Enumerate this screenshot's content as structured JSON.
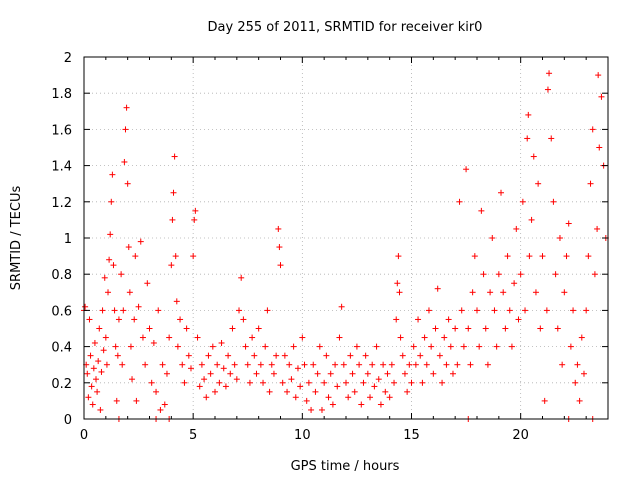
{
  "chart_data": {
    "type": "scatter",
    "title": "Day 255 of 2011, SRMTID for receiver kir0",
    "xlabel": "GPS time / hours",
    "ylabel": "SRMTID / TECUs",
    "xlim": [
      0,
      24
    ],
    "ylim": [
      0,
      2
    ],
    "grid": true,
    "x_ticks": [
      {
        "value": 0,
        "label": "0"
      },
      {
        "value": 5,
        "label": "5"
      },
      {
        "value": 10,
        "label": "10"
      },
      {
        "value": 15,
        "label": "15"
      },
      {
        "value": 20,
        "label": "20"
      }
    ],
    "y_ticks": [
      {
        "value": 0,
        "label": "0"
      },
      {
        "value": 0.2,
        "label": "0.2"
      },
      {
        "value": 0.4,
        "label": "0.4"
      },
      {
        "value": 0.6,
        "label": "0.6"
      },
      {
        "value": 0.8,
        "label": "0.8"
      },
      {
        "value": 1.0,
        "label": "1"
      },
      {
        "value": 1.2,
        "label": "1.2"
      },
      {
        "value": 1.4,
        "label": "1.4"
      },
      {
        "value": 1.6,
        "label": "1.6"
      },
      {
        "value": 1.8,
        "label": "1.8"
      },
      {
        "value": 2.0,
        "label": "2"
      }
    ],
    "series": [
      {
        "name": "SRMTID",
        "color": "#ff0000",
        "marker": "plus",
        "points": [
          [
            0.05,
            0.62
          ],
          [
            0.1,
            0.3
          ],
          [
            0.15,
            0.25
          ],
          [
            0.2,
            0.12
          ],
          [
            0.25,
            0.55
          ],
          [
            0.3,
            0.35
          ],
          [
            0.35,
            0.18
          ],
          [
            0.4,
            0.08
          ],
          [
            0.45,
            0.28
          ],
          [
            0.5,
            0.42
          ],
          [
            0.55,
            0.22
          ],
          [
            0.6,
            0.15
          ],
          [
            0.65,
            0.32
          ],
          [
            0.7,
            0.5
          ],
          [
            0.75,
            0.05
          ],
          [
            0.8,
            0.26
          ],
          [
            0.85,
            0.6
          ],
          [
            0.9,
            0.38
          ],
          [
            0.95,
            0.78
          ],
          [
            1.0,
            0.45
          ],
          [
            1.05,
            0.3
          ],
          [
            1.1,
            0.7
          ],
          [
            1.15,
            0.88
          ],
          [
            1.2,
            1.02
          ],
          [
            1.25,
            1.2
          ],
          [
            1.3,
            1.35
          ],
          [
            1.35,
            0.85
          ],
          [
            1.4,
            0.6
          ],
          [
            1.45,
            0.4
          ],
          [
            1.5,
            0.1
          ],
          [
            1.55,
            0.35
          ],
          [
            1.6,
            0.55
          ],
          [
            1.7,
            0.8
          ],
          [
            1.75,
            0.3
          ],
          [
            1.8,
            0.6
          ],
          [
            1.85,
            1.42
          ],
          [
            1.9,
            1.6
          ],
          [
            1.95,
            1.72
          ],
          [
            2.0,
            1.3
          ],
          [
            2.05,
            0.95
          ],
          [
            2.1,
            0.7
          ],
          [
            2.15,
            0.4
          ],
          [
            2.2,
            0.22
          ],
          [
            2.3,
            0.55
          ],
          [
            2.35,
            0.9
          ],
          [
            2.4,
            0.1
          ],
          [
            2.5,
            0.62
          ],
          [
            2.6,
            0.98
          ],
          [
            2.7,
            0.45
          ],
          [
            2.8,
            0.3
          ],
          [
            2.9,
            0.75
          ],
          [
            3.0,
            0.5
          ],
          [
            3.1,
            0.2
          ],
          [
            3.2,
            0.42
          ],
          [
            3.3,
            0.15
          ],
          [
            3.4,
            0.6
          ],
          [
            3.5,
            0.05
          ],
          [
            3.6,
            0.3
          ],
          [
            3.7,
            0.08
          ],
          [
            3.8,
            0.25
          ],
          [
            3.9,
            0.45
          ],
          [
            4.0,
            0.85
          ],
          [
            4.05,
            1.1
          ],
          [
            4.1,
            1.25
          ],
          [
            4.15,
            1.45
          ],
          [
            4.2,
            0.9
          ],
          [
            4.25,
            0.65
          ],
          [
            4.3,
            0.4
          ],
          [
            4.4,
            0.55
          ],
          [
            4.5,
            0.3
          ],
          [
            4.6,
            0.2
          ],
          [
            4.7,
            0.5
          ],
          [
            4.8,
            0.35
          ],
          [
            4.9,
            0.28
          ],
          [
            5.0,
            0.9
          ],
          [
            5.05,
            1.1
          ],
          [
            5.1,
            1.15
          ],
          [
            5.2,
            0.45
          ],
          [
            5.3,
            0.18
          ],
          [
            5.4,
            0.3
          ],
          [
            5.5,
            0.22
          ],
          [
            5.6,
            0.12
          ],
          [
            5.7,
            0.35
          ],
          [
            5.8,
            0.25
          ],
          [
            5.9,
            0.4
          ],
          [
            6.0,
            0.15
          ],
          [
            6.1,
            0.3
          ],
          [
            6.2,
            0.2
          ],
          [
            6.3,
            0.42
          ],
          [
            6.4,
            0.28
          ],
          [
            6.5,
            0.18
          ],
          [
            6.6,
            0.35
          ],
          [
            6.7,
            0.25
          ],
          [
            6.8,
            0.5
          ],
          [
            6.9,
            0.3
          ],
          [
            7.0,
            0.22
          ],
          [
            7.1,
            0.6
          ],
          [
            7.2,
            0.78
          ],
          [
            7.3,
            0.55
          ],
          [
            7.4,
            0.4
          ],
          [
            7.5,
            0.3
          ],
          [
            7.6,
            0.2
          ],
          [
            7.7,
            0.45
          ],
          [
            7.8,
            0.35
          ],
          [
            7.9,
            0.25
          ],
          [
            8.0,
            0.5
          ],
          [
            8.1,
            0.3
          ],
          [
            8.2,
            0.2
          ],
          [
            8.3,
            0.4
          ],
          [
            8.4,
            0.6
          ],
          [
            8.5,
            0.15
          ],
          [
            8.6,
            0.3
          ],
          [
            8.7,
            0.25
          ],
          [
            8.8,
            0.35
          ],
          [
            8.9,
            1.05
          ],
          [
            8.95,
            0.95
          ],
          [
            9.0,
            0.85
          ],
          [
            9.1,
            0.2
          ],
          [
            9.2,
            0.35
          ],
          [
            9.3,
            0.15
          ],
          [
            9.4,
            0.3
          ],
          [
            9.5,
            0.22
          ],
          [
            9.6,
            0.4
          ],
          [
            9.7,
            0.12
          ],
          [
            9.8,
            0.28
          ],
          [
            9.9,
            0.18
          ],
          [
            10.0,
            0.45
          ],
          [
            10.1,
            0.3
          ],
          [
            10.2,
            0.1
          ],
          [
            10.3,
            0.2
          ],
          [
            10.4,
            0.05
          ],
          [
            10.5,
            0.3
          ],
          [
            10.6,
            0.15
          ],
          [
            10.7,
            0.25
          ],
          [
            10.8,
            0.4
          ],
          [
            10.9,
            0.05
          ],
          [
            11.0,
            0.2
          ],
          [
            11.1,
            0.35
          ],
          [
            11.2,
            0.12
          ],
          [
            11.3,
            0.25
          ],
          [
            11.4,
            0.08
          ],
          [
            11.5,
            0.3
          ],
          [
            11.6,
            0.18
          ],
          [
            11.7,
            0.45
          ],
          [
            11.8,
            0.62
          ],
          [
            11.9,
            0.3
          ],
          [
            12.0,
            0.2
          ],
          [
            12.1,
            0.12
          ],
          [
            12.2,
            0.35
          ],
          [
            12.3,
            0.25
          ],
          [
            12.4,
            0.15
          ],
          [
            12.5,
            0.4
          ],
          [
            12.6,
            0.3
          ],
          [
            12.7,
            0.08
          ],
          [
            12.8,
            0.2
          ],
          [
            12.9,
            0.35
          ],
          [
            13.0,
            0.25
          ],
          [
            13.1,
            0.12
          ],
          [
            13.2,
            0.3
          ],
          [
            13.3,
            0.18
          ],
          [
            13.4,
            0.4
          ],
          [
            13.5,
            0.22
          ],
          [
            13.6,
            0.08
          ],
          [
            13.7,
            0.3
          ],
          [
            13.8,
            0.15
          ],
          [
            13.9,
            0.25
          ],
          [
            14.0,
            0.12
          ],
          [
            14.1,
            0.3
          ],
          [
            14.2,
            0.2
          ],
          [
            14.3,
            0.55
          ],
          [
            14.35,
            0.75
          ],
          [
            14.4,
            0.9
          ],
          [
            14.45,
            0.7
          ],
          [
            14.5,
            0.45
          ],
          [
            14.6,
            0.35
          ],
          [
            14.7,
            0.25
          ],
          [
            14.8,
            0.15
          ],
          [
            14.9,
            0.3
          ],
          [
            15.0,
            0.2
          ],
          [
            15.1,
            0.4
          ],
          [
            15.2,
            0.3
          ],
          [
            15.3,
            0.55
          ],
          [
            15.4,
            0.35
          ],
          [
            15.5,
            0.2
          ],
          [
            15.6,
            0.45
          ],
          [
            15.7,
            0.3
          ],
          [
            15.8,
            0.6
          ],
          [
            15.9,
            0.4
          ],
          [
            16.0,
            0.25
          ],
          [
            16.1,
            0.5
          ],
          [
            16.2,
            0.72
          ],
          [
            16.3,
            0.35
          ],
          [
            16.4,
            0.2
          ],
          [
            16.5,
            0.45
          ],
          [
            16.6,
            0.3
          ],
          [
            16.7,
            0.55
          ],
          [
            16.8,
            0.4
          ],
          [
            16.9,
            0.25
          ],
          [
            17.0,
            0.5
          ],
          [
            17.1,
            0.3
          ],
          [
            17.2,
            1.2
          ],
          [
            17.3,
            0.6
          ],
          [
            17.4,
            0.4
          ],
          [
            17.5,
            1.38
          ],
          [
            17.6,
            0.5
          ],
          [
            17.7,
            0.3
          ],
          [
            17.8,
            0.7
          ],
          [
            17.9,
            0.9
          ],
          [
            18.0,
            0.6
          ],
          [
            18.1,
            0.4
          ],
          [
            18.2,
            1.15
          ],
          [
            18.3,
            0.8
          ],
          [
            18.4,
            0.5
          ],
          [
            18.5,
            0.3
          ],
          [
            18.6,
            0.7
          ],
          [
            18.7,
            1.0
          ],
          [
            18.8,
            0.6
          ],
          [
            18.9,
            0.4
          ],
          [
            19.0,
            0.8
          ],
          [
            19.1,
            1.25
          ],
          [
            19.2,
            0.7
          ],
          [
            19.3,
            0.5
          ],
          [
            19.4,
            0.9
          ],
          [
            19.5,
            0.6
          ],
          [
            19.6,
            0.4
          ],
          [
            19.7,
            0.75
          ],
          [
            19.8,
            1.05
          ],
          [
            19.9,
            0.55
          ],
          [
            20.0,
            0.8
          ],
          [
            20.1,
            1.2
          ],
          [
            20.2,
            0.6
          ],
          [
            20.3,
            1.55
          ],
          [
            20.35,
            1.68
          ],
          [
            20.4,
            0.9
          ],
          [
            20.5,
            1.1
          ],
          [
            20.6,
            1.45
          ],
          [
            20.7,
            0.7
          ],
          [
            20.8,
            1.3
          ],
          [
            20.9,
            0.5
          ],
          [
            21.0,
            0.9
          ],
          [
            21.1,
            0.1
          ],
          [
            21.2,
            0.6
          ],
          [
            21.25,
            1.82
          ],
          [
            21.3,
            1.91
          ],
          [
            21.4,
            1.55
          ],
          [
            21.5,
            1.2
          ],
          [
            21.6,
            0.8
          ],
          [
            21.7,
            0.5
          ],
          [
            21.8,
            1.0
          ],
          [
            21.9,
            0.3
          ],
          [
            22.0,
            0.7
          ],
          [
            22.1,
            0.9
          ],
          [
            22.2,
            1.08
          ],
          [
            22.3,
            0.4
          ],
          [
            22.4,
            0.6
          ],
          [
            22.5,
            0.2
          ],
          [
            22.6,
            0.3
          ],
          [
            22.7,
            0.1
          ],
          [
            22.8,
            0.45
          ],
          [
            22.9,
            0.25
          ],
          [
            23.0,
            0.6
          ],
          [
            23.1,
            0.9
          ],
          [
            23.2,
            1.3
          ],
          [
            23.3,
            1.6
          ],
          [
            23.4,
            0.8
          ],
          [
            23.5,
            1.05
          ],
          [
            23.55,
            1.9
          ],
          [
            23.6,
            1.5
          ],
          [
            23.7,
            1.78
          ],
          [
            23.8,
            1.4
          ],
          [
            1.6,
            0.0
          ],
          [
            3.3,
            0.0
          ],
          [
            3.9,
            0.0
          ],
          [
            17.6,
            0.0
          ],
          [
            22.2,
            0.0
          ],
          [
            23.3,
            0.0
          ],
          [
            0.0,
            0.6
          ],
          [
            23.9,
            1.0
          ]
        ]
      }
    ]
  }
}
